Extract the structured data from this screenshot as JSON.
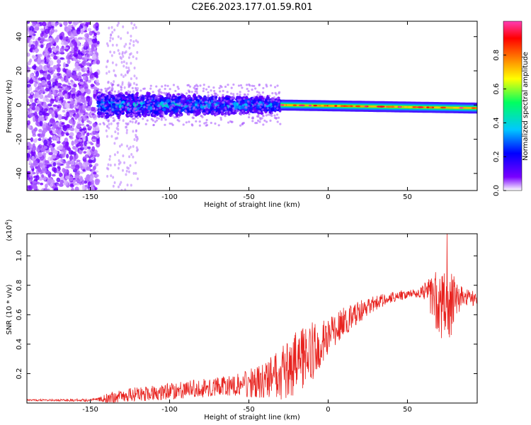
{
  "title": "C2E6.2023.177.01.59.R01",
  "chart_data": [
    {
      "type": "heatmap",
      "description_of_axes": "frequency spectrogram vs height of straight line",
      "xlabel": "Height of straight line (km)",
      "ylabel": "Frequency (Hz)",
      "xlim": [
        -190,
        94
      ],
      "ylim": [
        -50,
        49
      ],
      "xticks": [
        -150,
        -100,
        -50,
        0,
        50
      ],
      "yticks": [
        -40,
        -20,
        0,
        20,
        40
      ],
      "colorbar": {
        "label": "Normalized spectral amplitude",
        "range": [
          0.0,
          1.0
        ],
        "ticks": [
          "0.0",
          "0.2",
          "0.4",
          "0.6",
          "0.8"
        ],
        "colors": [
          "#ffffff",
          "#7a00ff",
          "#0000ff",
          "#00c8ff",
          "#00ff60",
          "#ffff00",
          "#ff8000",
          "#ff0000",
          "#ff3cb4"
        ]
      },
      "regions": [
        {
          "x_range": [
            -190,
            -145
          ],
          "kind": "noise",
          "amplitude": 0.1
        },
        {
          "x_range": [
            -145,
            -30
          ],
          "kind": "signal_band",
          "center_hz": 0,
          "width_hz": 8,
          "amplitude": 0.3
        },
        {
          "x_range": [
            -30,
            94
          ],
          "kind": "signal_line",
          "center_hz": 0,
          "width_hz": 3,
          "amplitude": 0.8
        }
      ]
    },
    {
      "type": "line",
      "xlabel": "Height of straight line (km)",
      "ylabel": "SNR (10 * v/v)",
      "ylabel_note": "(x10",
      "ylabel_exponent": "4",
      "xlim": [
        -190,
        94
      ],
      "ylim": [
        0,
        1.15
      ],
      "xticks": [
        -150,
        -100,
        -50,
        0,
        50
      ],
      "yticks": [
        0.2,
        0.4,
        0.6,
        0.8,
        1.0
      ],
      "color": "#e8231f",
      "trend": {
        "x": [
          -190,
          -150,
          -140,
          -120,
          -100,
          -80,
          -60,
          -40,
          -30,
          -20,
          -10,
          0,
          10,
          20,
          30,
          40,
          50,
          60,
          65,
          70,
          75,
          80,
          85,
          90,
          94
        ],
        "y": [
          0.02,
          0.02,
          0.03,
          0.06,
          0.08,
          0.1,
          0.12,
          0.15,
          0.2,
          0.28,
          0.35,
          0.45,
          0.55,
          0.62,
          0.68,
          0.72,
          0.74,
          0.76,
          0.74,
          0.68,
          0.66,
          0.7,
          0.72,
          0.72,
          0.7
        ]
      },
      "spread": {
        "x": [
          -190,
          -145,
          -140,
          -120,
          -60,
          -40,
          -30,
          -20,
          -10,
          0,
          10,
          30,
          50,
          60,
          65,
          70,
          75,
          80,
          85,
          94
        ],
        "y": [
          0.005,
          0.01,
          0.04,
          0.05,
          0.07,
          0.12,
          0.18,
          0.22,
          0.2,
          0.12,
          0.1,
          0.05,
          0.03,
          0.04,
          0.15,
          0.25,
          0.3,
          0.15,
          0.06,
          0.05
        ]
      },
      "peak": {
        "x": 75,
        "y": 1.15
      }
    }
  ]
}
